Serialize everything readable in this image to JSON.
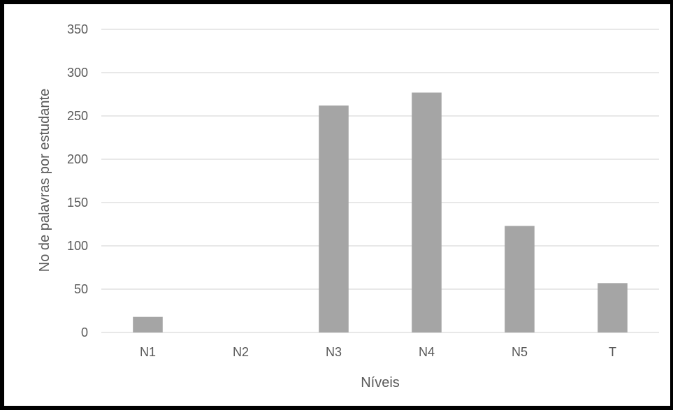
{
  "chart_data": {
    "type": "bar",
    "title": "",
    "xlabel": "Níveis",
    "ylabel": "No de palavras por estudante",
    "categories": [
      "N1",
      "N2",
      "N3",
      "N4",
      "N5",
      "T"
    ],
    "values": [
      18,
      0,
      262,
      277,
      123,
      57
    ],
    "ylim": [
      0,
      350
    ],
    "yticks": [
      0,
      50,
      100,
      150,
      200,
      250,
      300,
      350
    ],
    "grid": true,
    "legend": "none",
    "colors": {
      "bar": "#a5a5a5",
      "grid": "#d9d9d9",
      "text": "#595959",
      "border": "#000000"
    }
  }
}
